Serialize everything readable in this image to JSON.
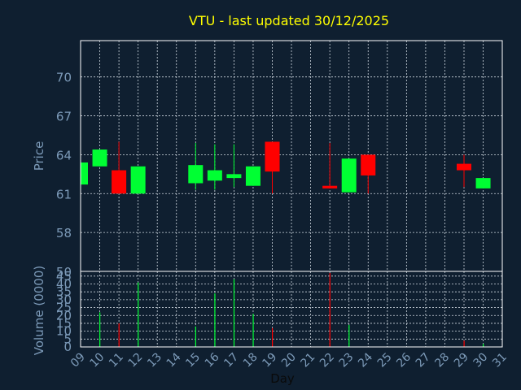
{
  "chart_data": {
    "type": "candlestick",
    "title": "VTU - last updated 30/12/2025",
    "xlabel": "Day",
    "ylabel_price": "Price",
    "ylabel_volume": "Volume (0000)",
    "x_ticks": [
      "09",
      "10",
      "11",
      "12",
      "13",
      "14",
      "15",
      "16",
      "17",
      "18",
      "19",
      "20",
      "21",
      "22",
      "23",
      "24",
      "25",
      "26",
      "27",
      "28",
      "29",
      "30",
      "31"
    ],
    "price_ticks": [
      58,
      61,
      64,
      67,
      70
    ],
    "price_range": [
      55,
      72.8
    ],
    "volume_ticks": [
      0,
      5,
      10,
      15,
      20,
      25,
      30,
      35,
      40,
      45
    ],
    "volume_range": [
      0,
      48
    ],
    "volume_top_label": "50",
    "grid": true,
    "colors": {
      "background": "#0f1f30",
      "up": "#00ff33",
      "down": "#ff0000",
      "title": "#ffff00",
      "axis_text": "#7c9ab8",
      "grid": "#cfd8e0",
      "frame": "#ffffff"
    },
    "candles": [
      {
        "day": 9,
        "open": 61.7,
        "close": 63.4,
        "high": 63.4,
        "low": 61.7
      },
      {
        "day": 10,
        "open": 63.1,
        "close": 64.4,
        "high": 64.4,
        "low": 63.1
      },
      {
        "day": 11,
        "open": 62.8,
        "close": 61.0,
        "high": 65.0,
        "low": 61.0
      },
      {
        "day": 12,
        "open": 61.0,
        "close": 63.1,
        "high": 63.1,
        "low": 61.0
      },
      {
        "day": 15,
        "open": 61.8,
        "close": 63.2,
        "high": 64.9,
        "low": 61.3
      },
      {
        "day": 16,
        "open": 62.0,
        "close": 62.8,
        "high": 64.8,
        "low": 61.3
      },
      {
        "day": 17,
        "open": 62.2,
        "close": 62.5,
        "high": 64.8,
        "low": 61.5
      },
      {
        "day": 18,
        "open": 61.6,
        "close": 63.1,
        "high": 63.1,
        "low": 61.6
      },
      {
        "day": 19,
        "open": 65.0,
        "close": 62.7,
        "high": 65.0,
        "low": 61.0
      },
      {
        "day": 22,
        "open": 61.6,
        "close": 61.4,
        "high": 64.9,
        "low": 61.4
      },
      {
        "day": 23,
        "open": 61.1,
        "close": 63.7,
        "high": 63.7,
        "low": 61.1
      },
      {
        "day": 24,
        "open": 64.0,
        "close": 62.4,
        "high": 64.0,
        "low": 61.0
      },
      {
        "day": 29,
        "open": 63.3,
        "close": 62.8,
        "high": 64.0,
        "low": 61.5
      },
      {
        "day": 30,
        "open": 61.4,
        "close": 62.2,
        "high": 62.2,
        "low": 61.4
      }
    ],
    "volumes": [
      {
        "day": 10,
        "value": 22,
        "dir": "up"
      },
      {
        "day": 11,
        "value": 15,
        "dir": "down"
      },
      {
        "day": 12,
        "value": 41,
        "dir": "up"
      },
      {
        "day": 15,
        "value": 13,
        "dir": "up"
      },
      {
        "day": 16,
        "value": 34,
        "dir": "up"
      },
      {
        "day": 17,
        "value": 43,
        "dir": "up"
      },
      {
        "day": 18,
        "value": 21,
        "dir": "up"
      },
      {
        "day": 19,
        "value": 12,
        "dir": "down"
      },
      {
        "day": 22,
        "value": 47,
        "dir": "down"
      },
      {
        "day": 23,
        "value": 14,
        "dir": "up"
      },
      {
        "day": 29,
        "value": 4,
        "dir": "down"
      },
      {
        "day": 30,
        "value": 2,
        "dir": "up"
      }
    ]
  }
}
